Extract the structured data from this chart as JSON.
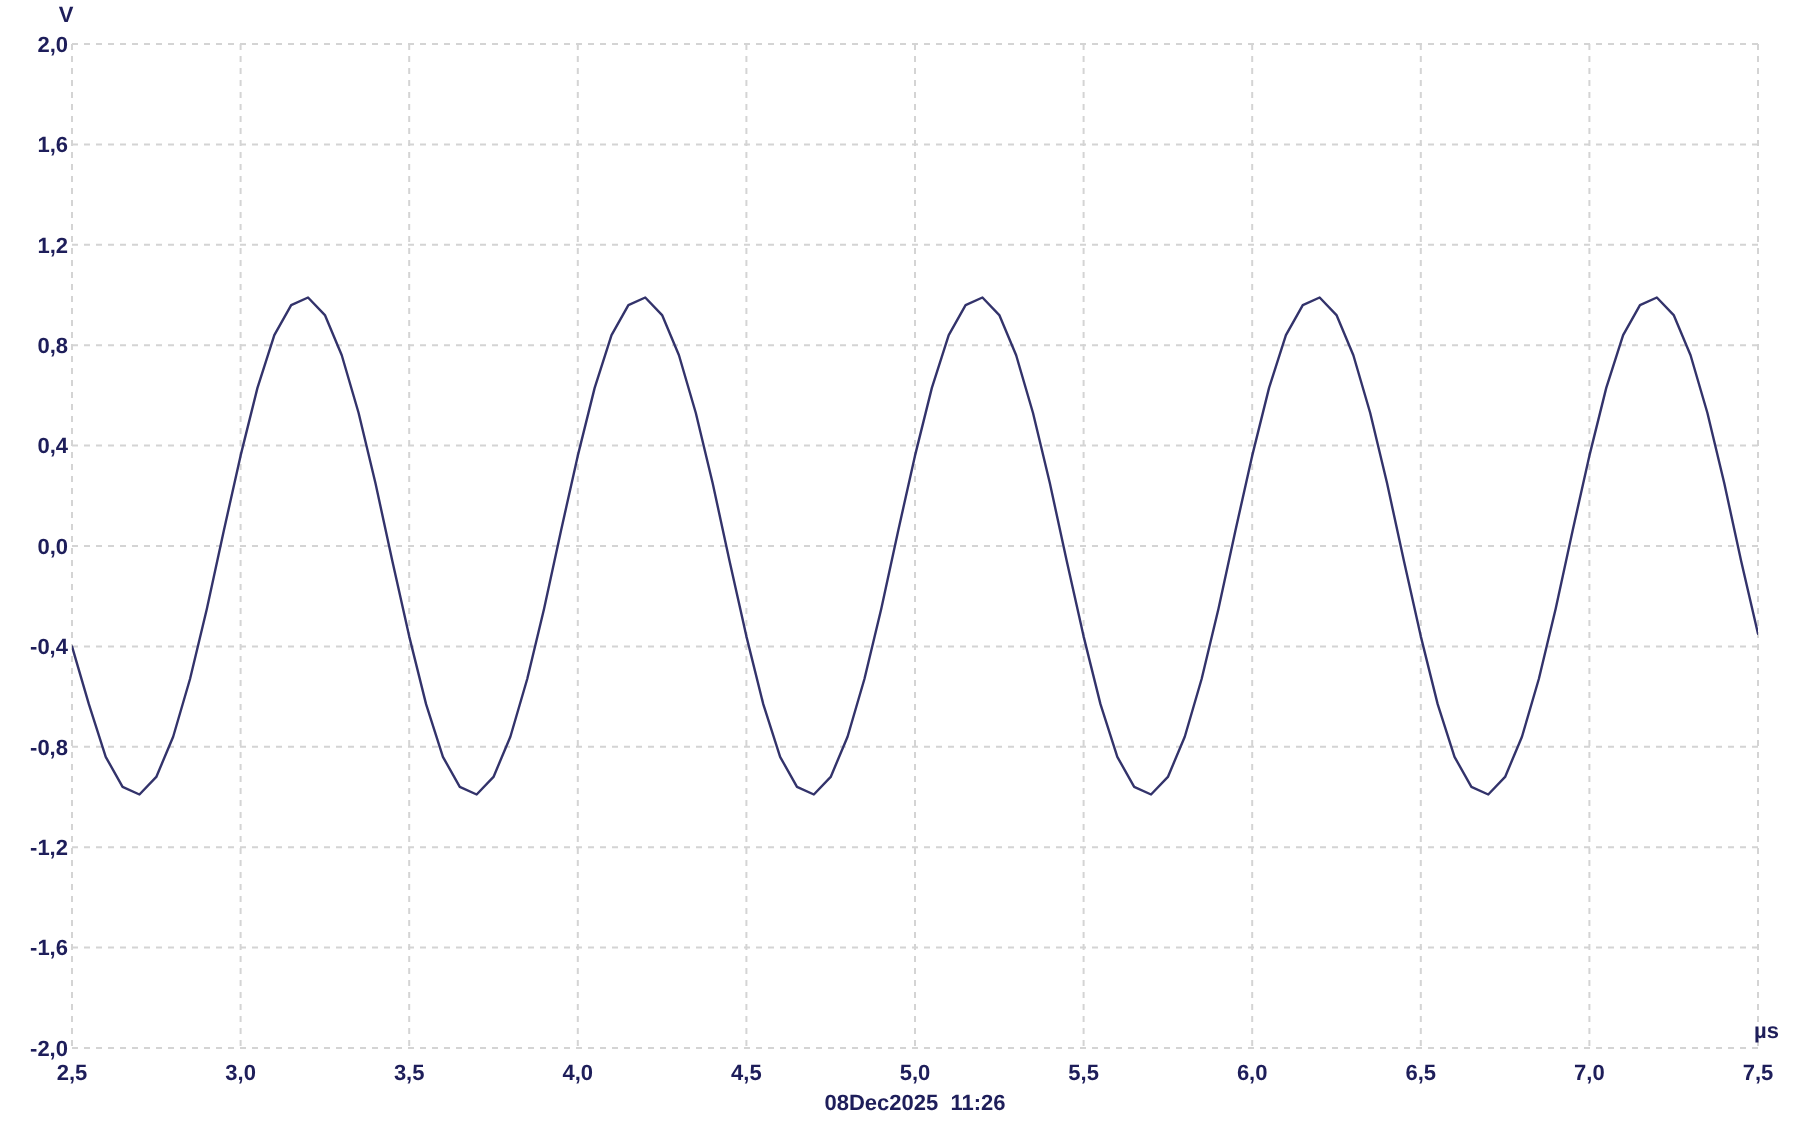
{
  "chart_data": {
    "type": "line",
    "xlabel": "µs",
    "ylabel": "V",
    "annotations": [
      "08Dec2025  11:26"
    ],
    "x": [
      2.5,
      2.55,
      2.6,
      2.65,
      2.7,
      2.75,
      2.8,
      2.85,
      2.9,
      2.95,
      3,
      3.05,
      3.1,
      3.15,
      3.2,
      3.25,
      3.3,
      3.35,
      3.4,
      3.45,
      3.5,
      3.55,
      3.6,
      3.65,
      3.7,
      3.75,
      3.8,
      3.85,
      3.9,
      3.95,
      4,
      4.05,
      4.1,
      4.15,
      4.2,
      4.25,
      4.3,
      4.35,
      4.4,
      4.45,
      4.5,
      4.55,
      4.6,
      4.65,
      4.7,
      4.75,
      4.8,
      4.85,
      4.9,
      4.95,
      5,
      5.05,
      5.1,
      5.15,
      5.2,
      5.25,
      5.3,
      5.35,
      5.4,
      5.45,
      5.5,
      5.55,
      5.6,
      5.65,
      5.7,
      5.75,
      5.8,
      5.85,
      5.9,
      5.95,
      6,
      6.05,
      6.1,
      6.15,
      6.2,
      6.25,
      6.3,
      6.35,
      6.4,
      6.45,
      6.5,
      6.55,
      6.6,
      6.65,
      6.7,
      6.75,
      6.8,
      6.85,
      6.9,
      6.95,
      7,
      7.05,
      7.1,
      7.15,
      7.2,
      7.25,
      7.3,
      7.35,
      7.4,
      7.45,
      7.5
    ],
    "series": [
      {
        "color": "#33336b",
        "values": [
          -0.4,
          -0.63,
          -0.84,
          -0.96,
          -0.99,
          -0.92,
          -0.76,
          -0.53,
          -0.25,
          0.06,
          0.36,
          0.63,
          0.84,
          0.96,
          0.99,
          0.92,
          0.76,
          0.53,
          0.25,
          -0.06,
          -0.36,
          -0.63,
          -0.84,
          -0.96,
          -0.99,
          -0.92,
          -0.76,
          -0.53,
          -0.25,
          0.06,
          0.36,
          0.63,
          0.84,
          0.96,
          0.99,
          0.92,
          0.76,
          0.53,
          0.25,
          -0.06,
          -0.36,
          -0.63,
          -0.84,
          -0.96,
          -0.99,
          -0.92,
          -0.76,
          -0.53,
          -0.25,
          0.06,
          0.36,
          0.63,
          0.84,
          0.96,
          0.99,
          0.92,
          0.76,
          0.53,
          0.25,
          -0.06,
          -0.36,
          -0.63,
          -0.84,
          -0.96,
          -0.99,
          -0.92,
          -0.76,
          -0.53,
          -0.25,
          0.06,
          0.36,
          0.63,
          0.84,
          0.96,
          0.99,
          0.92,
          0.76,
          0.53,
          0.25,
          -0.06,
          -0.36,
          -0.63,
          -0.84,
          -0.96,
          -0.99,
          -0.92,
          -0.76,
          -0.53,
          -0.25,
          0.06,
          0.36,
          0.63,
          0.84,
          0.96,
          0.99,
          0.92,
          0.76,
          0.53,
          0.25,
          -0.06,
          -0.35
        ]
      }
    ],
    "xlim": [
      2.5,
      7.5
    ],
    "xticks": [
      {
        "value": 2.5,
        "label": "2,5"
      },
      {
        "value": 3,
        "label": "3,0"
      },
      {
        "value": 3.5,
        "label": "3,5"
      },
      {
        "value": 4,
        "label": "4,0"
      },
      {
        "value": 4.5,
        "label": "4,5"
      },
      {
        "value": 5,
        "label": "5,0"
      },
      {
        "value": 5.5,
        "label": "5,5"
      },
      {
        "value": 6,
        "label": "6,0"
      },
      {
        "value": 6.5,
        "label": "6,5"
      },
      {
        "value": 7,
        "label": "7,0"
      },
      {
        "value": 7.5,
        "label": "7,5"
      }
    ],
    "ylim": [
      -2,
      2
    ],
    "yticks": [
      {
        "value": -2,
        "label": "-2,0"
      },
      {
        "value": -1.6,
        "label": "-1,6"
      },
      {
        "value": -1.2,
        "label": "-1,2"
      },
      {
        "value": -0.8,
        "label": "-0,8"
      },
      {
        "value": -0.4,
        "label": "-0,4"
      },
      {
        "value": 0,
        "label": "0,0"
      },
      {
        "value": 0.4,
        "label": "0,4"
      },
      {
        "value": 0.8,
        "label": "0,8"
      },
      {
        "value": 1.2,
        "label": "1,2"
      },
      {
        "value": 1.6,
        "label": "1,6"
      },
      {
        "value": 2,
        "label": "2,0"
      }
    ],
    "grid": true,
    "marker": "none",
    "line_style": "solid"
  }
}
